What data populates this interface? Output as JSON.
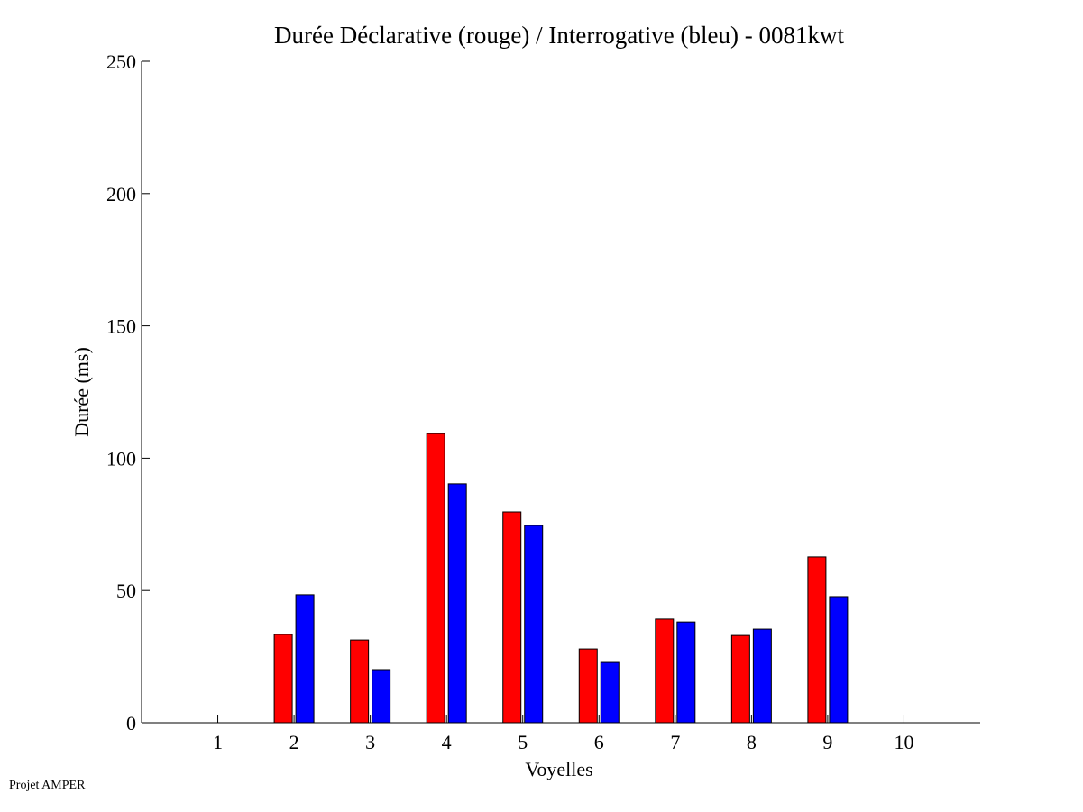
{
  "chart_data": {
    "type": "bar",
    "title": "Durée Déclarative (rouge) / Interrogative (bleu) - 0081kwt",
    "xlabel": "Voyelles",
    "ylabel": "Durée (ms)",
    "xlim": [
      0,
      11
    ],
    "ylim": [
      0,
      250
    ],
    "xticks": [
      1,
      2,
      3,
      4,
      5,
      6,
      7,
      8,
      9,
      10
    ],
    "yticks": [
      0,
      50,
      100,
      150,
      200,
      250
    ],
    "grid": false,
    "categories": [
      2,
      3,
      4,
      5,
      6,
      7,
      8,
      9
    ],
    "series": [
      {
        "name": "Déclarative",
        "color": "#ff0000",
        "values": [
          33.4,
          31.3,
          109.3,
          79.7,
          27.9,
          39.2,
          33.0,
          62.7
        ]
      },
      {
        "name": "Interrogative",
        "color": "#0000ff",
        "values": [
          48.4,
          20.1,
          90.3,
          74.6,
          22.8,
          38.1,
          35.4,
          47.7
        ]
      }
    ]
  },
  "footer": "Projet AMPER"
}
